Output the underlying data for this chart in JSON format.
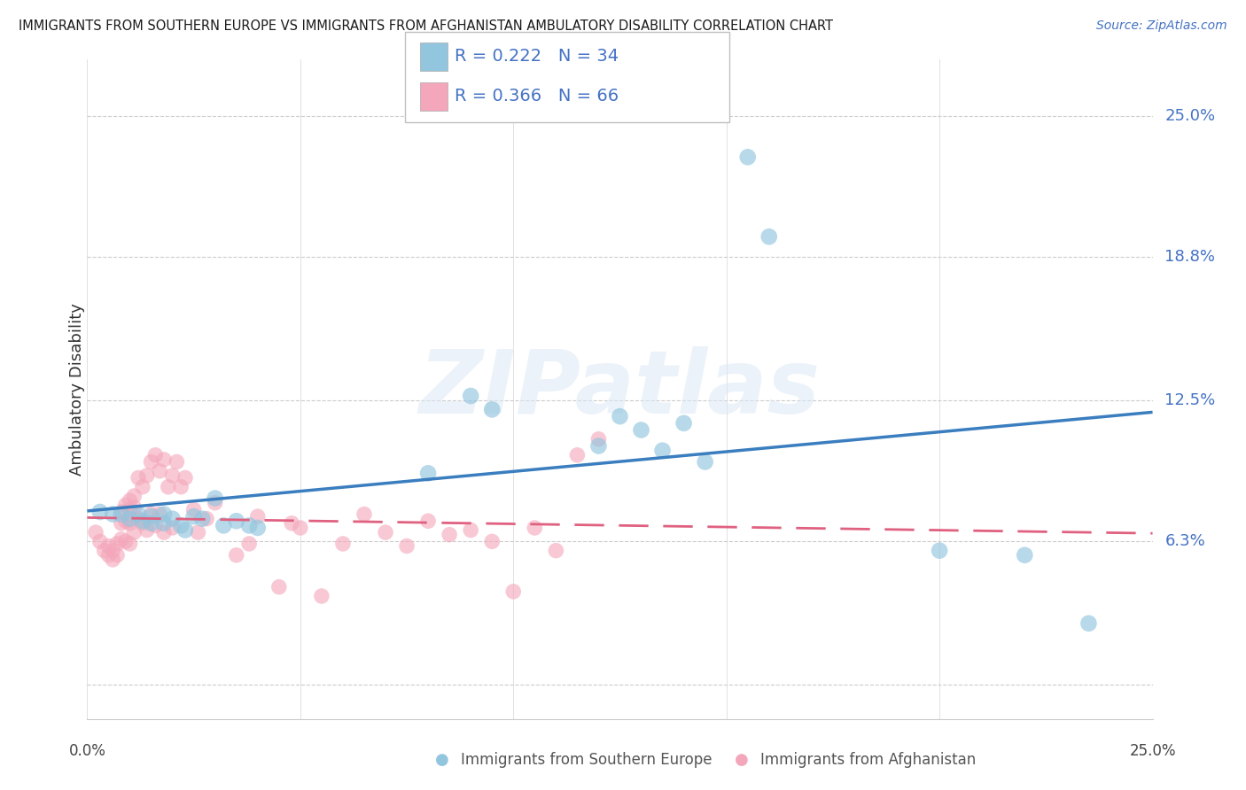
{
  "title": "IMMIGRANTS FROM SOUTHERN EUROPE VS IMMIGRANTS FROM AFGHANISTAN AMBULATORY DISABILITY CORRELATION CHART",
  "source": "Source: ZipAtlas.com",
  "ylabel": "Ambulatory Disability",
  "ytick_labels": [
    "25.0%",
    "18.8%",
    "12.5%",
    "6.3%"
  ],
  "ytick_values": [
    0.25,
    0.188,
    0.125,
    0.063
  ],
  "xlim": [
    0.0,
    0.25
  ],
  "ylim": [
    -0.015,
    0.275
  ],
  "legend_blue_R": "0.222",
  "legend_blue_N": "34",
  "legend_pink_R": "0.366",
  "legend_pink_N": "66",
  "legend_label_blue": "Immigrants from Southern Europe",
  "legend_label_pink": "Immigrants from Afghanistan",
  "blue_color": "#92c5de",
  "pink_color": "#f4a6ba",
  "blue_line_color": "#3a7ebf",
  "pink_line_color": "#e06080",
  "legend_text_color": "#4472c4",
  "blue_scatter_x": [
    0.003,
    0.006,
    0.008,
    0.01,
    0.012,
    0.013,
    0.015,
    0.015,
    0.018,
    0.018,
    0.02,
    0.022,
    0.023,
    0.025,
    0.027,
    0.03,
    0.032,
    0.035,
    0.038,
    0.04,
    0.08,
    0.09,
    0.095,
    0.12,
    0.125,
    0.13,
    0.135,
    0.14,
    0.145,
    0.155,
    0.16,
    0.2,
    0.22,
    0.235
  ],
  "blue_scatter_y": [
    0.076,
    0.075,
    0.075,
    0.073,
    0.075,
    0.072,
    0.074,
    0.071,
    0.075,
    0.071,
    0.073,
    0.07,
    0.068,
    0.074,
    0.073,
    0.082,
    0.07,
    0.072,
    0.07,
    0.069,
    0.093,
    0.127,
    0.121,
    0.105,
    0.118,
    0.112,
    0.103,
    0.115,
    0.098,
    0.232,
    0.197,
    0.059,
    0.057,
    0.027
  ],
  "pink_scatter_x": [
    0.002,
    0.003,
    0.004,
    0.005,
    0.005,
    0.006,
    0.006,
    0.007,
    0.007,
    0.008,
    0.008,
    0.008,
    0.009,
    0.009,
    0.009,
    0.01,
    0.01,
    0.01,
    0.01,
    0.011,
    0.011,
    0.011,
    0.012,
    0.012,
    0.013,
    0.013,
    0.014,
    0.014,
    0.015,
    0.015,
    0.016,
    0.016,
    0.017,
    0.017,
    0.018,
    0.018,
    0.019,
    0.02,
    0.02,
    0.021,
    0.022,
    0.023,
    0.025,
    0.026,
    0.028,
    0.03,
    0.035,
    0.038,
    0.04,
    0.045,
    0.048,
    0.05,
    0.055,
    0.06,
    0.065,
    0.07,
    0.075,
    0.08,
    0.085,
    0.09,
    0.095,
    0.1,
    0.105,
    0.11,
    0.115,
    0.12
  ],
  "pink_scatter_y": [
    0.067,
    0.063,
    0.059,
    0.061,
    0.057,
    0.059,
    0.055,
    0.062,
    0.057,
    0.076,
    0.071,
    0.064,
    0.079,
    0.072,
    0.063,
    0.081,
    0.077,
    0.071,
    0.062,
    0.083,
    0.078,
    0.067,
    0.091,
    0.073,
    0.087,
    0.071,
    0.092,
    0.068,
    0.098,
    0.075,
    0.101,
    0.07,
    0.094,
    0.075,
    0.099,
    0.067,
    0.087,
    0.092,
    0.069,
    0.098,
    0.087,
    0.091,
    0.077,
    0.067,
    0.073,
    0.08,
    0.057,
    0.062,
    0.074,
    0.043,
    0.071,
    0.069,
    0.039,
    0.062,
    0.075,
    0.067,
    0.061,
    0.072,
    0.066,
    0.068,
    0.063,
    0.041,
    0.069,
    0.059,
    0.101,
    0.108
  ],
  "xtick_positions": [
    0.0,
    0.05,
    0.1,
    0.15,
    0.2,
    0.25
  ],
  "grid_color": "#cccccc",
  "watermark_color": "#dce8f5"
}
